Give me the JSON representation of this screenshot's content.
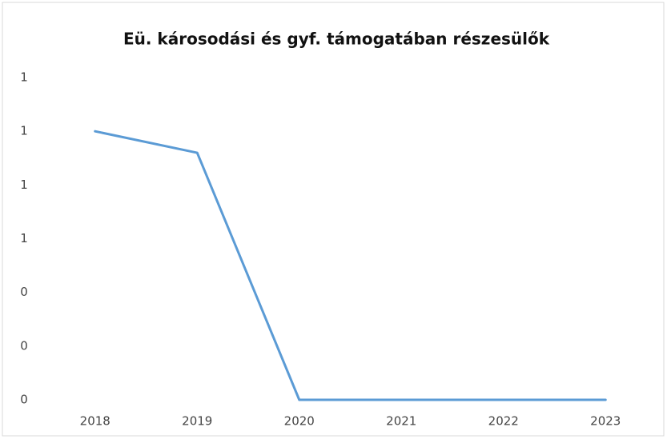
{
  "chart_data": {
    "type": "line",
    "title": "Eü. károsodási és gyf. támogatában részesülők",
    "categories": [
      "2018",
      "2019",
      "2020",
      "2021",
      "2022",
      "2023"
    ],
    "series": [
      {
        "name": "Eü. károsodási és gyf. támogatában részesülők",
        "color": "#5b9bd5",
        "values": [
          1.0,
          0.92,
          0,
          0,
          0,
          0
        ]
      }
    ],
    "ylim": [
      0,
      1.2
    ],
    "yticks": [
      0,
      {
        "value": 0.2,
        "label": "0"
      },
      {
        "value": 0.4,
        "label": "0"
      },
      {
        "value": 0.6,
        "label": "1"
      },
      {
        "value": 0.8,
        "label": "1"
      },
      1,
      {
        "value": 1.2,
        "label": "1"
      }
    ],
    "grid": false,
    "legend": false
  }
}
